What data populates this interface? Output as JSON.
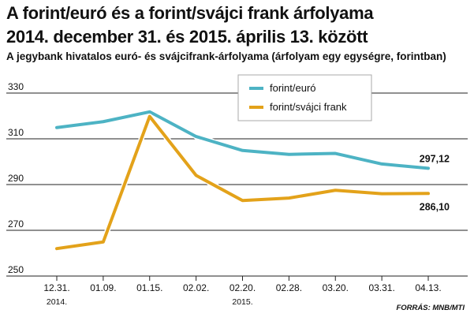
{
  "chart_data": {
    "type": "line",
    "title_line1": "A forint/euró és a forint/svájci frank árfolyama",
    "title_line2": "2014. december 31. és 2015. április 13. között",
    "subtitle": "A jegybank hivatalos euró- és svájcifrank-árfolyama (árfolyam egy egységre, forintban)",
    "categories": [
      "12.31.",
      "01.09.",
      "01.15.",
      "02.02.",
      "02.20.",
      "02.28.",
      "03.20.",
      "03.31.",
      "04.13."
    ],
    "year_labels": [
      {
        "text": "2014.",
        "at_index": 0
      },
      {
        "text": "2015.",
        "at_index": 4
      }
    ],
    "ylim": [
      250,
      330
    ],
    "yticks": [
      250,
      270,
      290,
      310,
      330
    ],
    "grid": "horizontal",
    "legend_position": "top-right",
    "series": [
      {
        "name": "forint/euró",
        "color": "#4db3c4",
        "values": [
          314.9,
          317.5,
          321.8,
          311.0,
          304.9,
          303.2,
          303.6,
          299.0,
          297.12
        ],
        "end_label": "297,12"
      },
      {
        "name": "forint/svájci frank",
        "color": "#e3a21a",
        "values": [
          262.0,
          264.9,
          319.8,
          294.0,
          283.0,
          284.1,
          287.5,
          286.0,
          286.1
        ],
        "end_label": "286,10"
      }
    ]
  },
  "source": "FORRÁS: MNB/MTI"
}
